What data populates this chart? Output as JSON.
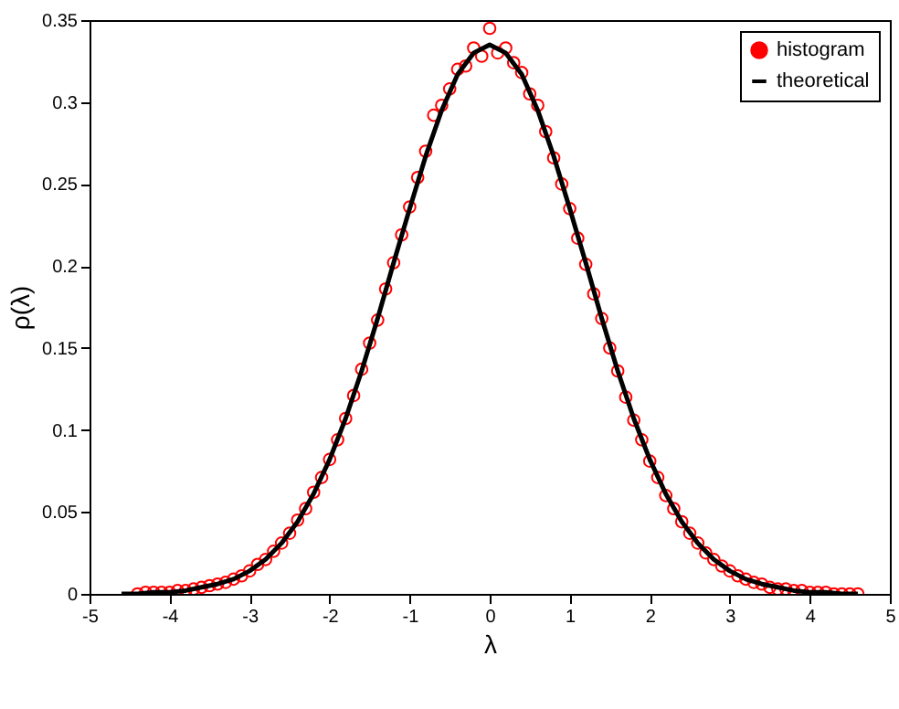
{
  "chart_data": {
    "type": "scatter",
    "xlabel": "λ",
    "ylabel": "ρ(λ)",
    "xlim": [
      -5,
      5
    ],
    "xticks": [
      -5,
      -4,
      -3,
      -2,
      -1,
      0,
      1,
      2,
      3,
      4,
      5
    ],
    "ylim": [
      0,
      0.35
    ],
    "yticks": [
      0,
      0.05,
      0.1,
      0.15,
      0.2,
      0.25,
      0.3,
      0.35
    ],
    "grid": false,
    "legend": "top right",
    "series": [
      {
        "name": "histogram",
        "color": "#ff0000",
        "marker": "circle",
        "x": [
          -4.4,
          -4.3,
          -4.2,
          -4.1,
          -4.0,
          -3.9,
          -3.8,
          -3.7,
          -3.6,
          -3.5,
          -3.4,
          -3.3,
          -3.2,
          -3.1,
          -3.0,
          -2.9,
          -2.8,
          -2.7,
          -2.6,
          -2.5,
          -2.4,
          -2.3,
          -2.2,
          -2.1,
          -2.0,
          -1.9,
          -1.8,
          -1.7,
          -1.6,
          -1.5,
          -1.4,
          -1.3,
          -1.2,
          -1.1,
          -1.0,
          -0.9,
          -0.8,
          -0.7,
          -0.6,
          -0.5,
          -0.4,
          -0.3,
          -0.2,
          -0.1,
          0,
          0.1,
          0.2,
          0.3,
          0.4,
          0.5,
          0.6,
          0.7,
          0.8,
          0.9,
          1.0,
          1.1,
          1.2,
          1.3,
          1.4,
          1.5,
          1.6,
          1.7,
          1.8,
          1.9,
          2.0,
          2.1,
          2.2,
          2.3,
          2.4,
          2.5,
          2.6,
          2.7,
          2.8,
          2.9,
          3.0,
          3.1,
          3.2,
          3.3,
          3.4,
          3.5,
          3.6,
          3.7,
          3.8,
          3.9,
          4.0,
          4.1,
          4.2,
          4.3,
          4.4,
          4.5,
          4.6
        ],
        "values": [
          0.0,
          0.001,
          0.001,
          0.001,
          0.001,
          0.002,
          0.002,
          0.003,
          0.004,
          0.005,
          0.006,
          0.007,
          0.009,
          0.011,
          0.014,
          0.018,
          0.021,
          0.026,
          0.031,
          0.037,
          0.045,
          0.052,
          0.062,
          0.071,
          0.082,
          0.094,
          0.107,
          0.121,
          0.137,
          0.153,
          0.167,
          0.186,
          0.202,
          0.219,
          0.236,
          0.254,
          0.27,
          0.292,
          0.298,
          0.308,
          0.32,
          0.322,
          0.333,
          0.328,
          0.345,
          0.33,
          0.333,
          0.324,
          0.318,
          0.305,
          0.298,
          0.282,
          0.266,
          0.25,
          0.235,
          0.217,
          0.201,
          0.183,
          0.168,
          0.15,
          0.136,
          0.12,
          0.106,
          0.094,
          0.081,
          0.071,
          0.06,
          0.052,
          0.044,
          0.037,
          0.031,
          0.025,
          0.021,
          0.017,
          0.014,
          0.011,
          0.009,
          0.007,
          0.006,
          0.004,
          0.003,
          0.003,
          0.002,
          0.002,
          0.001,
          0.001,
          0.001,
          0.0,
          0.0,
          0.0,
          0.0
        ]
      },
      {
        "type": "line",
        "name": "theoretical",
        "color": "#000000",
        "line_style": "solid",
        "x": [
          -4.6,
          -4.4,
          -4.2,
          -4.0,
          -3.8,
          -3.6,
          -3.4,
          -3.2,
          -3.0,
          -2.8,
          -2.6,
          -2.4,
          -2.2,
          -2.0,
          -1.8,
          -1.6,
          -1.4,
          -1.2,
          -1.0,
          -0.8,
          -0.6,
          -0.4,
          -0.2,
          0,
          0.2,
          0.4,
          0.6,
          0.8,
          1.0,
          1.2,
          1.4,
          1.6,
          1.8,
          2.0,
          2.2,
          2.4,
          2.6,
          2.8,
          3.0,
          3.2,
          3.4,
          3.6,
          3.8,
          4.0,
          4.2,
          4.4,
          4.6
        ],
        "values": [
          0.0,
          0.0,
          0.001,
          0.001,
          0.002,
          0.004,
          0.006,
          0.009,
          0.014,
          0.021,
          0.031,
          0.044,
          0.061,
          0.082,
          0.107,
          0.136,
          0.168,
          0.202,
          0.235,
          0.267,
          0.295,
          0.317,
          0.33,
          0.335,
          0.33,
          0.317,
          0.295,
          0.267,
          0.235,
          0.202,
          0.168,
          0.136,
          0.107,
          0.082,
          0.061,
          0.044,
          0.031,
          0.021,
          0.014,
          0.009,
          0.006,
          0.004,
          0.002,
          0.001,
          0.001,
          0.0,
          0.0
        ]
      }
    ]
  }
}
